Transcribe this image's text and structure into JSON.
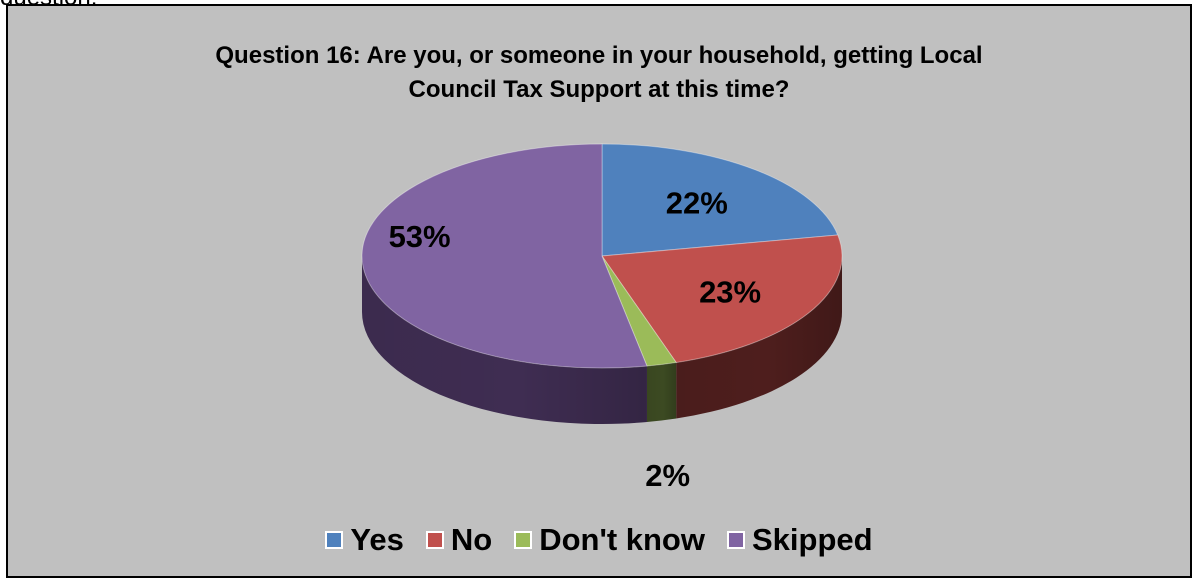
{
  "page_fragment": "question.",
  "chart_data": {
    "type": "pie",
    "title_lines": [
      "Question 16: Are you, or someone in your household, getting Local",
      "Council Tax Support at this time?"
    ],
    "three_d": true,
    "legend_position": "bottom",
    "slices": [
      {
        "name": "Yes",
        "value": 22,
        "label": "22%",
        "color": "#4f81bd",
        "side": "#2f4e73"
      },
      {
        "name": "No",
        "value": 23,
        "label": "23%",
        "color": "#c0504d",
        "side": "#4e1e1d"
      },
      {
        "name": "Don't know",
        "value": 2,
        "label": "2%",
        "color": "#9bbb59",
        "side": "#3c4a22"
      },
      {
        "name": "Skipped",
        "value": 53,
        "label": "53%",
        "color": "#8064a2",
        "side": "#3f2d52"
      }
    ]
  }
}
